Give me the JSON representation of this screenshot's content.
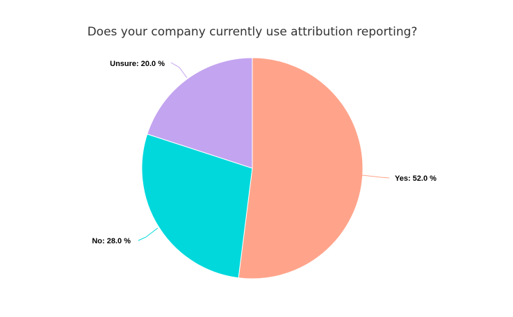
{
  "chart_data": {
    "type": "pie",
    "title": "Does your company currently use attribution reporting?",
    "slices": [
      {
        "label": "Yes",
        "value": 52.0,
        "display": "Yes: 52.0 %",
        "color": "#ffa48b"
      },
      {
        "label": "No",
        "value": 28.0,
        "display": "No: 28.0 %",
        "color": "#00d8dc"
      },
      {
        "label": "Unsure",
        "value": 20.0,
        "display": "Unsure: 20.0 %",
        "color": "#c3a4f0"
      }
    ],
    "start_angle_deg": 0,
    "direction": "clockwise",
    "unit": "%"
  }
}
